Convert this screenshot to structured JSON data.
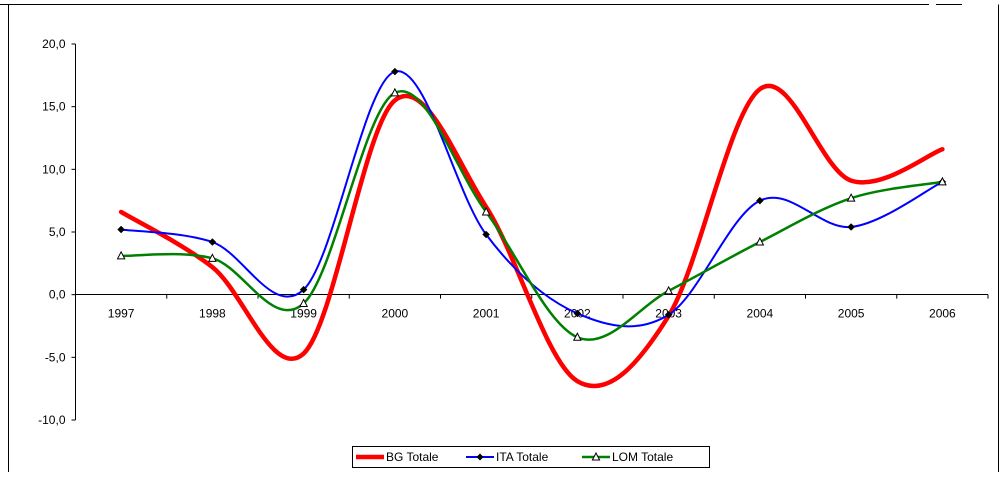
{
  "chart_data": {
    "type": "line",
    "smooth": true,
    "categories": [
      "1997",
      "1998",
      "1999",
      "2000",
      "2001",
      "2002",
      "2003",
      "2004",
      "2005",
      "2006"
    ],
    "y_ticks": [
      "20,0",
      "15,0",
      "10,0",
      "5,0",
      "0,0",
      "-5,0",
      "-10,0"
    ],
    "ylim": [
      -10,
      20
    ],
    "grid": false,
    "legend_position": "bottom",
    "series": [
      {
        "name": "BG Totale",
        "color": "#ff0000",
        "marker": "none",
        "width": 4.5,
        "values": [
          6.6,
          2.2,
          -4.7,
          15.5,
          7.0,
          -6.9,
          -1.7,
          16.4,
          9.1,
          11.6
        ]
      },
      {
        "name": "ITA Totale",
        "color": "#0000ff",
        "marker": "diamond",
        "width": 2,
        "values": [
          5.2,
          4.2,
          0.4,
          17.8,
          4.8,
          -1.5,
          -1.6,
          7.5,
          5.4,
          9.0
        ]
      },
      {
        "name": "LOM Totale",
        "color": "#008000",
        "marker": "triangle",
        "width": 2.5,
        "values": [
          3.1,
          2.9,
          -0.7,
          16.1,
          6.6,
          -3.4,
          0.3,
          4.2,
          7.7,
          9.0
        ]
      }
    ]
  }
}
